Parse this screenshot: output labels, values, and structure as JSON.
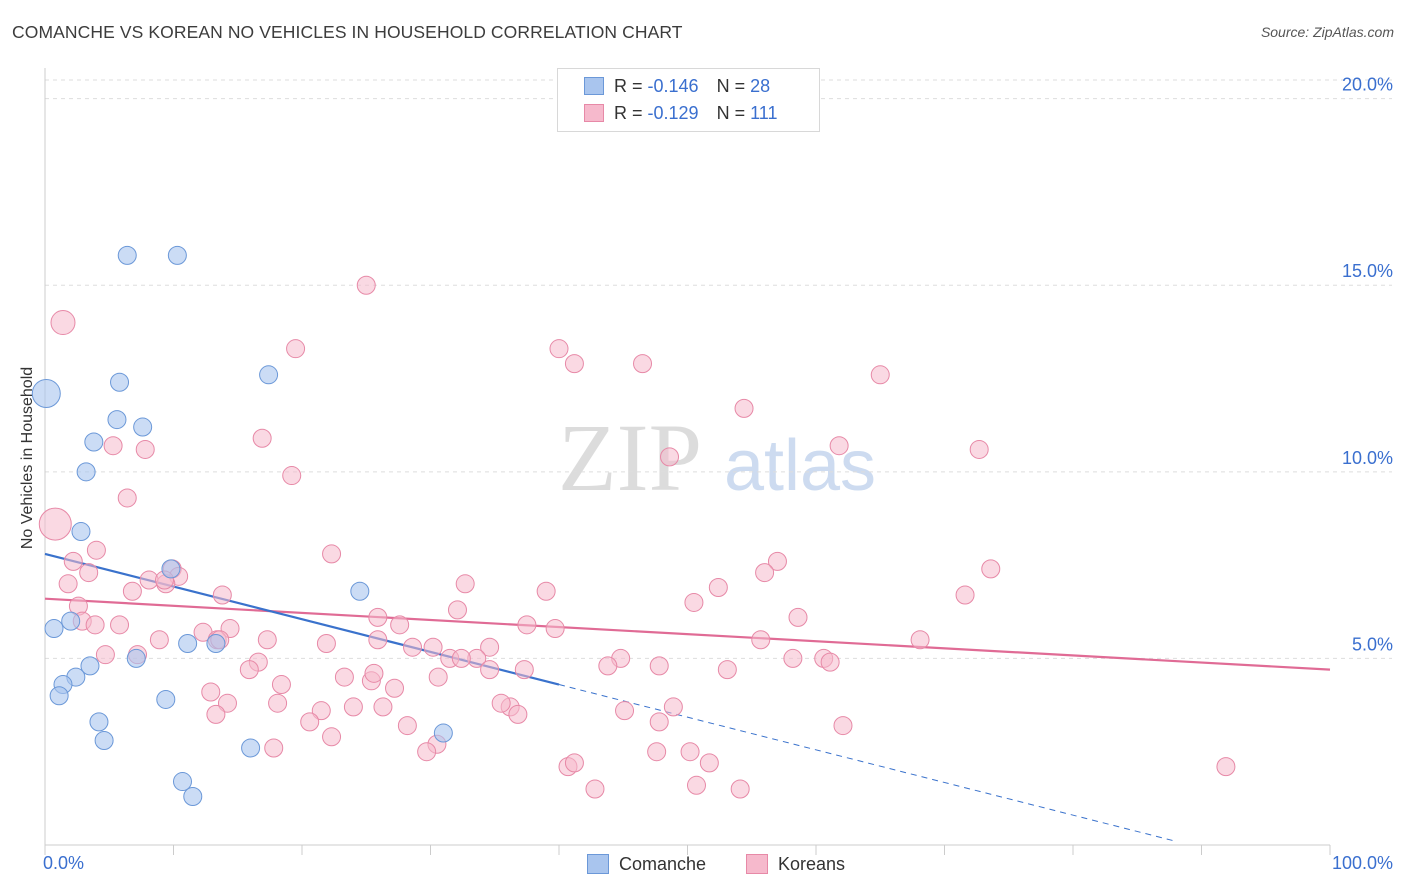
{
  "title": "COMANCHE VS KOREAN NO VEHICLES IN HOUSEHOLD CORRELATION CHART",
  "source": "Source: ZipAtlas.com",
  "watermark": {
    "zip": "ZIP",
    "atlas": "atlas"
  },
  "legend_top": {
    "r_label": "R =",
    "n_label": "N =",
    "comanche": {
      "r": "-0.146",
      "n": "28"
    },
    "koreans": {
      "r": "-0.129",
      "n": "111"
    }
  },
  "colors": {
    "comanche_fill": "#a9c5ee",
    "comanche_stroke": "#6b98d8",
    "comanche_line": "#3a72cc",
    "koreans_fill": "#f6b9cc",
    "koreans_stroke": "#e789a7",
    "koreans_line": "#e06b95",
    "tick_label": "#3a6fcf",
    "grid": "#dddddd"
  },
  "chart_data": {
    "type": "scatter",
    "title": "COMANCHE VS KOREAN NO VEHICLES IN HOUSEHOLD CORRELATION CHART",
    "xlabel": "",
    "ylabel": "No Vehicles in Household",
    "xlim": [
      0,
      100
    ],
    "ylim": [
      0,
      20.5
    ],
    "x_tick_labels": [
      "0.0%",
      "100.0%"
    ],
    "y_ticks": [
      5,
      10,
      15,
      20
    ],
    "y_tick_labels": [
      "5.0%",
      "10.0%",
      "15.0%",
      "20.0%"
    ],
    "legend": [
      "Comanche",
      "Koreans"
    ],
    "series": [
      {
        "name": "Comanche",
        "r": -0.146,
        "n": 28,
        "trend": {
          "x0": 0,
          "y0": 7.8,
          "x1": 40,
          "y1": 4.3,
          "dashed_to_x": 88,
          "dashed_to_y": 0.1
        },
        "points": [
          [
            6.4,
            15.8,
            9
          ],
          [
            10.3,
            15.8,
            9
          ],
          [
            17.4,
            12.6,
            9
          ],
          [
            5.8,
            12.4,
            9
          ],
          [
            0.1,
            12.1,
            14
          ],
          [
            5.6,
            11.4,
            9
          ],
          [
            7.6,
            11.2,
            9
          ],
          [
            3.8,
            10.8,
            9
          ],
          [
            3.2,
            10.0,
            9
          ],
          [
            2.8,
            8.4,
            9
          ],
          [
            24.5,
            6.8,
            9
          ],
          [
            2.0,
            6.0,
            9
          ],
          [
            0.7,
            5.8,
            9
          ],
          [
            9.8,
            7.4,
            9
          ],
          [
            11.1,
            5.4,
            9
          ],
          [
            13.3,
            5.4,
            9
          ],
          [
            7.1,
            5.0,
            9
          ],
          [
            3.5,
            4.8,
            9
          ],
          [
            2.4,
            4.5,
            9
          ],
          [
            1.4,
            4.3,
            9
          ],
          [
            1.1,
            4.0,
            9
          ],
          [
            9.4,
            3.9,
            9
          ],
          [
            4.2,
            3.3,
            9
          ],
          [
            4.6,
            2.8,
            9
          ],
          [
            31.0,
            3.0,
            9
          ],
          [
            16.0,
            2.6,
            9
          ],
          [
            10.7,
            1.7,
            9
          ],
          [
            11.5,
            1.3,
            9
          ]
        ]
      },
      {
        "name": "Koreans",
        "r": -0.129,
        "n": 111,
        "trend": {
          "x0": 0,
          "y0": 6.6,
          "x1": 100,
          "y1": 4.7
        },
        "points": [
          [
            0.8,
            8.6,
            16
          ],
          [
            1.4,
            14.0,
            12
          ],
          [
            25.0,
            15.0,
            9
          ],
          [
            19.5,
            13.3,
            9
          ],
          [
            40.0,
            13.3,
            9
          ],
          [
            41.2,
            12.9,
            9
          ],
          [
            46.5,
            12.9,
            9
          ],
          [
            65.0,
            12.6,
            9
          ],
          [
            54.4,
            11.7,
            9
          ],
          [
            16.9,
            10.9,
            9
          ],
          [
            5.3,
            10.7,
            9
          ],
          [
            7.8,
            10.6,
            9
          ],
          [
            61.8,
            10.7,
            9
          ],
          [
            72.7,
            10.6,
            9
          ],
          [
            48.6,
            10.4,
            9
          ],
          [
            19.2,
            9.9,
            9
          ],
          [
            6.4,
            9.3,
            9
          ],
          [
            4.0,
            7.9,
            9
          ],
          [
            22.3,
            7.8,
            9
          ],
          [
            2.2,
            7.6,
            9
          ],
          [
            3.4,
            7.3,
            9
          ],
          [
            9.9,
            7.4,
            9
          ],
          [
            10.4,
            7.2,
            9
          ],
          [
            8.1,
            7.1,
            9
          ],
          [
            9.4,
            7.0,
            9
          ],
          [
            1.8,
            7.0,
            9
          ],
          [
            57.0,
            7.6,
            9
          ],
          [
            56.0,
            7.3,
            9
          ],
          [
            73.6,
            7.4,
            9
          ],
          [
            32.7,
            7.0,
            9
          ],
          [
            52.4,
            6.9,
            9
          ],
          [
            6.8,
            6.8,
            9
          ],
          [
            13.8,
            6.7,
            9
          ],
          [
            39.0,
            6.8,
            9
          ],
          [
            71.6,
            6.7,
            9
          ],
          [
            50.5,
            6.5,
            9
          ],
          [
            2.6,
            6.4,
            9
          ],
          [
            32.1,
            6.3,
            9
          ],
          [
            25.9,
            6.1,
            9
          ],
          [
            58.6,
            6.1,
            9
          ],
          [
            2.9,
            6.0,
            9
          ],
          [
            3.9,
            5.9,
            9
          ],
          [
            5.8,
            5.9,
            9
          ],
          [
            27.6,
            5.9,
            9
          ],
          [
            37.5,
            5.9,
            9
          ],
          [
            14.4,
            5.8,
            9
          ],
          [
            12.3,
            5.7,
            9
          ],
          [
            17.3,
            5.5,
            9
          ],
          [
            8.9,
            5.5,
            9
          ],
          [
            25.9,
            5.5,
            9
          ],
          [
            55.7,
            5.5,
            9
          ],
          [
            13.4,
            5.5,
            9
          ],
          [
            21.9,
            5.4,
            9
          ],
          [
            28.6,
            5.3,
            9
          ],
          [
            30.2,
            5.3,
            9
          ],
          [
            34.6,
            5.3,
            9
          ],
          [
            4.7,
            5.1,
            9
          ],
          [
            7.2,
            5.1,
            9
          ],
          [
            33.6,
            5.0,
            9
          ],
          [
            31.5,
            5.0,
            9
          ],
          [
            32.4,
            5.0,
            9
          ],
          [
            44.8,
            5.0,
            9
          ],
          [
            58.2,
            5.0,
            9
          ],
          [
            60.6,
            5.0,
            9
          ],
          [
            43.8,
            4.8,
            9
          ],
          [
            61.1,
            4.9,
            9
          ],
          [
            47.8,
            4.8,
            9
          ],
          [
            16.6,
            4.9,
            9
          ],
          [
            15.9,
            4.7,
            9
          ],
          [
            34.6,
            4.7,
            9
          ],
          [
            37.3,
            4.7,
            9
          ],
          [
            53.1,
            4.7,
            9
          ],
          [
            23.3,
            4.5,
            9
          ],
          [
            25.4,
            4.4,
            9
          ],
          [
            18.4,
            4.3,
            9
          ],
          [
            30.6,
            4.5,
            9
          ],
          [
            25.6,
            4.6,
            9
          ],
          [
            27.2,
            4.2,
            9
          ],
          [
            12.9,
            4.1,
            9
          ],
          [
            14.2,
            3.8,
            9
          ],
          [
            18.1,
            3.8,
            9
          ],
          [
            24.0,
            3.7,
            9
          ],
          [
            26.3,
            3.7,
            9
          ],
          [
            36.2,
            3.7,
            9
          ],
          [
            48.9,
            3.7,
            9
          ],
          [
            35.5,
            3.8,
            9
          ],
          [
            13.3,
            3.5,
            9
          ],
          [
            21.5,
            3.6,
            9
          ],
          [
            36.8,
            3.5,
            9
          ],
          [
            45.1,
            3.6,
            9
          ],
          [
            47.8,
            3.3,
            9
          ],
          [
            20.6,
            3.3,
            9
          ],
          [
            28.2,
            3.2,
            9
          ],
          [
            62.1,
            3.2,
            9
          ],
          [
            22.3,
            2.9,
            9
          ],
          [
            30.5,
            2.7,
            9
          ],
          [
            17.8,
            2.6,
            9
          ],
          [
            29.7,
            2.5,
            9
          ],
          [
            47.6,
            2.5,
            9
          ],
          [
            50.2,
            2.5,
            9
          ],
          [
            40.7,
            2.1,
            9
          ],
          [
            41.2,
            2.2,
            9
          ],
          [
            51.7,
            2.2,
            9
          ],
          [
            91.9,
            2.1,
            9
          ],
          [
            42.8,
            1.5,
            9
          ],
          [
            50.7,
            1.6,
            9
          ],
          [
            54.1,
            1.5,
            9
          ],
          [
            13.6,
            5.5,
            9
          ],
          [
            9.3,
            7.1,
            9
          ],
          [
            68.1,
            5.5,
            9
          ],
          [
            39.7,
            5.8,
            9
          ]
        ]
      }
    ]
  },
  "bottom_legend": [
    "Comanche",
    "Koreans"
  ]
}
